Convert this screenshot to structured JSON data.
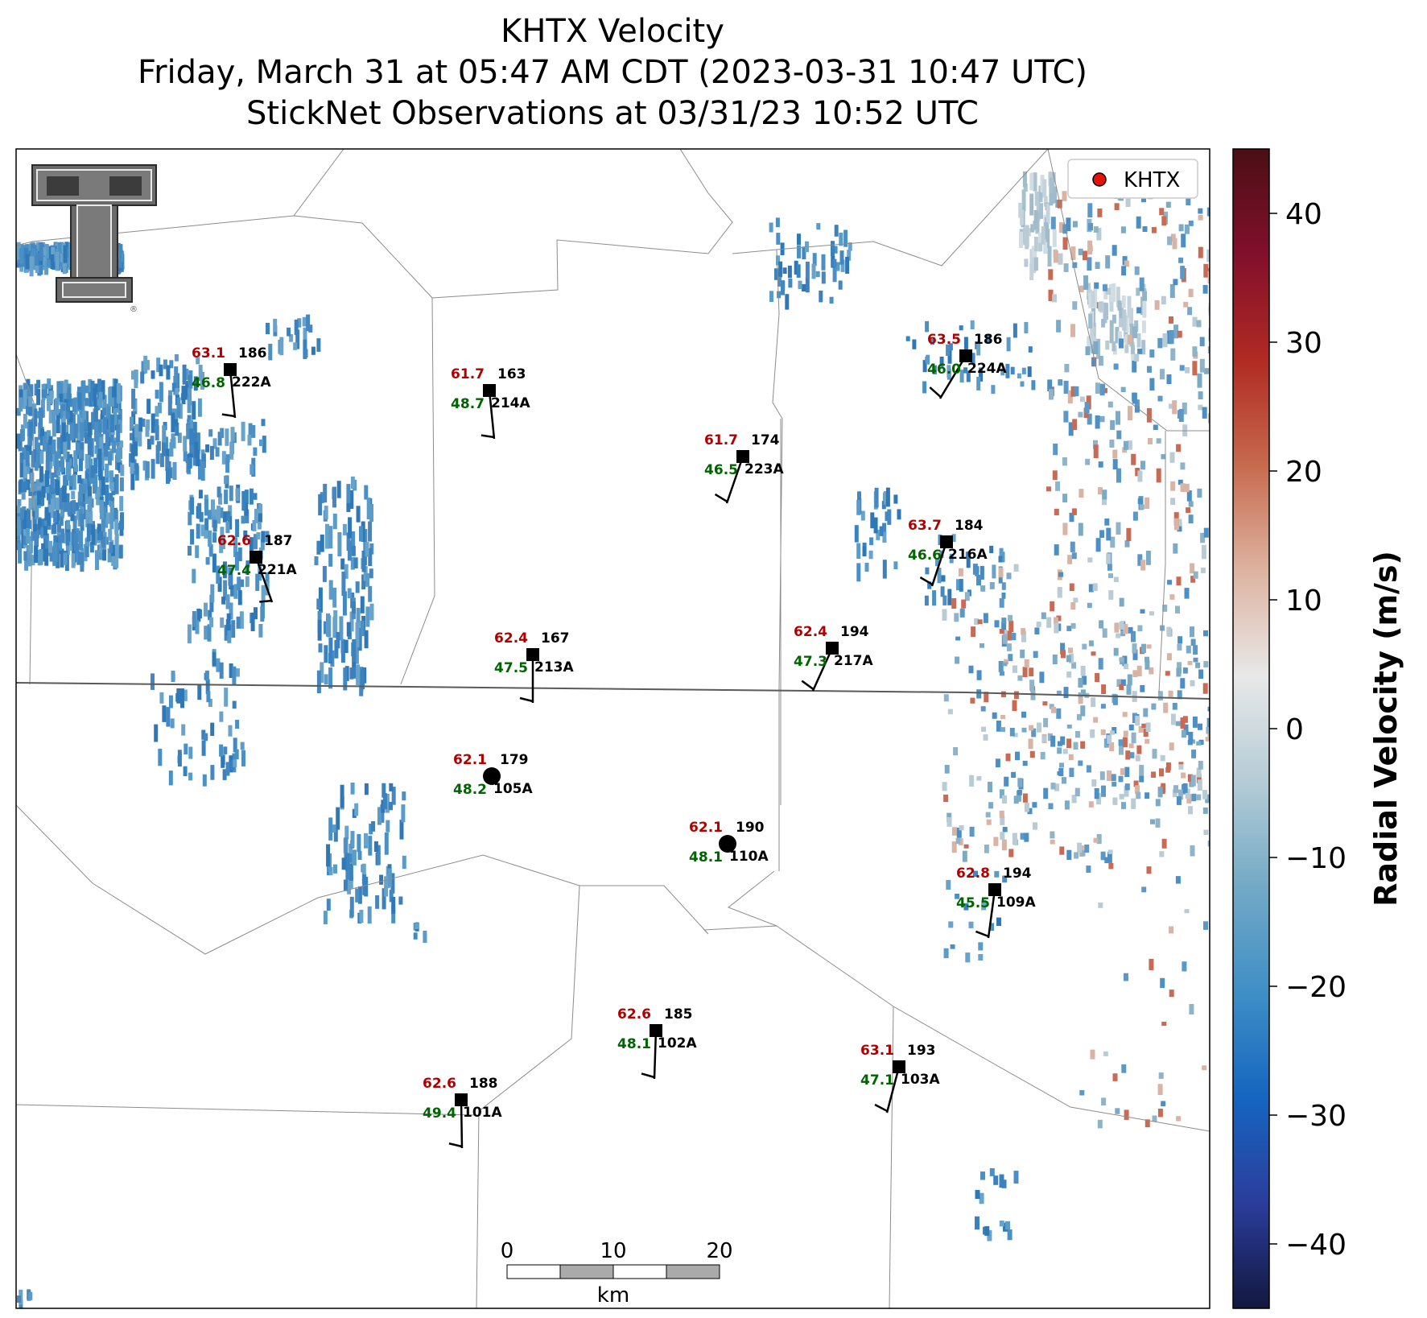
{
  "title": {
    "line1": "KHTX Velocity",
    "line2": "Friday, March 31 at 05:47 AM CDT (2023-03-31 10:47 UTC)",
    "line3": "StickNet Observations at 03/31/23 10:52 UTC"
  },
  "legend": {
    "label": "KHTX",
    "marker_color": "#e3120b"
  },
  "logo": {
    "text": "TT",
    "mark": "®"
  },
  "colorbar": {
    "label": "Radial Velocity (m/s)",
    "ticks": [
      "40",
      "30",
      "20",
      "10",
      "0",
      "−10",
      "−20",
      "−30",
      "−40"
    ],
    "range": [
      -45,
      45
    ],
    "colors": [
      "#12183f",
      "#2b3d9c",
      "#1565c0",
      "#3f8fc6",
      "#73a9c6",
      "#b5ccd6",
      "#e8e8e8",
      "#deb3a0",
      "#c76a4e",
      "#b02a22",
      "#820f2c",
      "#4a0f14"
    ]
  },
  "scalebar": {
    "ticks": [
      "0",
      "10",
      "20"
    ],
    "unit": "km"
  },
  "stations": [
    {
      "id": "222A",
      "temp": "63.1",
      "dew": "46.8",
      "pressure": "186",
      "marker": "square"
    },
    {
      "id": "214A",
      "temp": "61.7",
      "dew": "48.7",
      "pressure": "163",
      "marker": "square"
    },
    {
      "id": "223A",
      "temp": "61.7",
      "dew": "46.5",
      "pressure": "174",
      "marker": "square"
    },
    {
      "id": "224A",
      "temp": "63.5",
      "dew": "46.0",
      "pressure": "186",
      "marker": "square"
    },
    {
      "id": "221A",
      "temp": "62.6",
      "dew": "47.4",
      "pressure": "187",
      "marker": "square"
    },
    {
      "id": "216A",
      "temp": "63.7",
      "dew": "46.6",
      "pressure": "184",
      "marker": "square"
    },
    {
      "id": "213A",
      "temp": "62.4",
      "dew": "47.5",
      "pressure": "167",
      "marker": "square"
    },
    {
      "id": "217A",
      "temp": "62.4",
      "dew": "47.3",
      "pressure": "194",
      "marker": "square"
    },
    {
      "id": "105A",
      "temp": "62.1",
      "dew": "48.2",
      "pressure": "179",
      "marker": "circle"
    },
    {
      "id": "110A",
      "temp": "62.1",
      "dew": "48.1",
      "pressure": "190",
      "marker": "circle"
    },
    {
      "id": "109A",
      "temp": "62.8",
      "dew": "45.5",
      "pressure": "194",
      "marker": "square"
    },
    {
      "id": "102A",
      "temp": "62.6",
      "dew": "48.1",
      "pressure": "185",
      "marker": "square"
    },
    {
      "id": "103A",
      "temp": "63.1",
      "dew": "47.1",
      "pressure": "193",
      "marker": "square"
    },
    {
      "id": "101A",
      "temp": "62.6",
      "dew": "49.4",
      "pressure": "188",
      "marker": "square"
    }
  ],
  "colors": {
    "temp": "#b00000",
    "dew": "#006400",
    "text": "#000000"
  }
}
